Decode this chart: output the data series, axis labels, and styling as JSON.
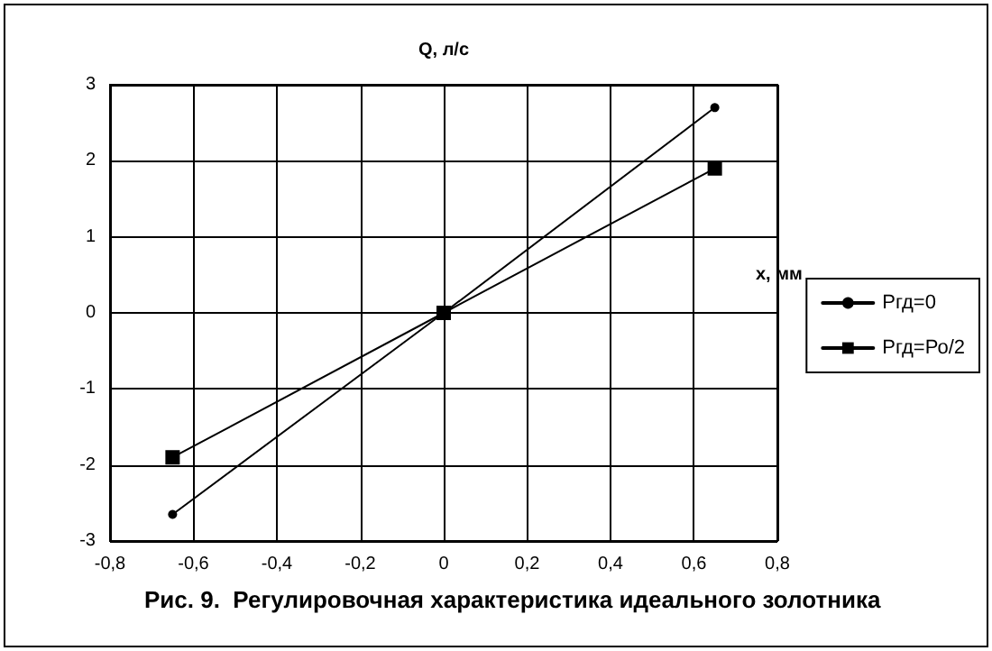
{
  "chart_data": {
    "type": "line",
    "title": "Рис. 9.  Регулировочная характеристика идеального золотника",
    "xlabel": "x, мм",
    "ylabel": "Q, л/с",
    "xlim": [
      -0.8,
      0.8
    ],
    "ylim": [
      -3,
      3
    ],
    "xticks": [
      {
        "value": -0.8,
        "label": "-0,8"
      },
      {
        "value": -0.6,
        "label": "-0,6"
      },
      {
        "value": -0.4,
        "label": "-0,4"
      },
      {
        "value": -0.2,
        "label": "-0,2"
      },
      0,
      {
        "value": 0.2,
        "label": "0,2"
      },
      {
        "value": 0.4,
        "label": "0,4"
      },
      {
        "value": 0.6,
        "label": "0,6"
      },
      {
        "value": 0.8,
        "label": "0,8"
      }
    ],
    "yticks": [
      -3,
      -2,
      -1,
      0,
      1,
      2,
      3
    ],
    "grid": true,
    "legend": "right",
    "line_style": "solid",
    "series": [
      {
        "name": "Ргд=0",
        "color": "#000000",
        "marker": "circle",
        "x": [
          -0.65,
          0,
          0.65
        ],
        "values": [
          -2.65,
          0,
          2.7
        ]
      },
      {
        "name": "Ргд=Ро/2",
        "color": "#000000",
        "marker": "square",
        "x": [
          -0.65,
          0,
          0.65
        ],
        "values": [
          -1.9,
          0,
          1.9
        ]
      }
    ]
  }
}
